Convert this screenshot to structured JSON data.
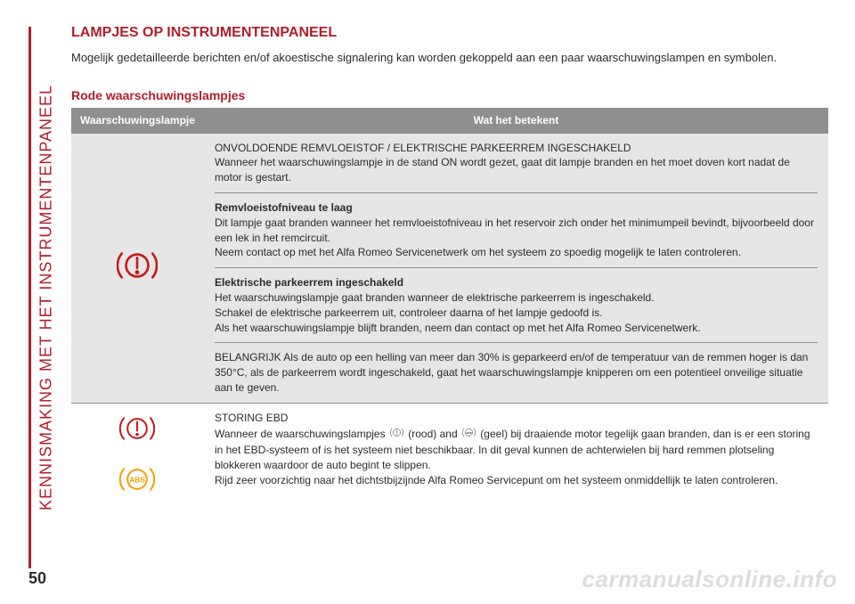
{
  "colors": {
    "brand_red": "#b01e2e",
    "text_black": "#2b2b2b",
    "header_grey": "#8f8f8f",
    "cell_alt_grey": "#e6e6e6",
    "divider_grey": "#8f8f8f",
    "white": "#ffffff",
    "icon_red": "#c31a1a",
    "icon_amber": "#f2a100",
    "watermark_grey": "#d9d9d9"
  },
  "vertical_label": "KENNISMAKING MET HET INSTRUMENTENPANEEL",
  "section_title": "LAMPJES OP INSTRUMENTENPANEEL",
  "intro_text": "Mogelijk gedetailleerde berichten en/of akoestische signalering kan worden gekoppeld aan een paar waarschuwingslampen en symbolen.",
  "sub_title": "Rode waarschuwingslampjes",
  "table": {
    "header_icon": "Waarschuwingslampje",
    "header_meaning": "Wat het betekent",
    "row1": {
      "block1_title": "ONVOLDOENDE REMVLOEISTOF / ELEKTRISCHE PARKEERREM INGESCHAKELD",
      "block1_body": "Wanneer het waarschuwingslampje in de stand ON wordt gezet, gaat dit lampje branden en het moet doven kort nadat de motor is gestart.",
      "block2_title": "Remvloeistofniveau te laag",
      "block2_body_a": "Dit lampje gaat branden wanneer het remvloeistofniveau in het reservoir zich onder het minimumpeil bevindt, bijvoorbeeld door een lek in het remcircuit.",
      "block2_body_b": "Neem contact op met het Alfa Romeo Servicenetwerk om het systeem zo spoedig mogelijk te laten controleren.",
      "block3_title": "Elektrische parkeerrem ingeschakeld",
      "block3_body_a": "Het waarschuwingslampje gaat branden wanneer de elektrische parkeerrem is ingeschakeld.",
      "block3_body_b": "Schakel de elektrische parkeerrem uit, controleer daarna of het lampje gedoofd is.",
      "block3_body_c": "Als het waarschuwingslampje blijft branden, neem dan contact op met het Alfa Romeo Servicenetwerk.",
      "block4_body": "BELANGRIJK Als de auto op een helling van meer dan 30% is geparkeerd en/of de temperatuur van de remmen hoger is dan 350°C, als de parkeerrem wordt ingeschakeld, gaat het waarschuwingslampje knipperen om een potentieel onveilige situatie aan te geven."
    },
    "row2": {
      "title": "STORING EBD",
      "body_a_pre": "Wanneer de waarschuwingslampjes ",
      "body_a_mid1": " (rood) and ",
      "body_a_mid2": " (geel) bij draaiende motor tegelijk gaan branden, dan is er een storing in het EBD-systeem of is het systeem niet beschikbaar. In dit geval kunnen de achterwielen bij hard remmen plotseling blokkeren waardoor de auto begint te slippen.",
      "body_b": "Rijd zeer voorzichtig naar het dichtstbijzijnde Alfa Romeo Servicepunt om het systeem onmiddellijk te laten controleren."
    }
  },
  "page_number": "50",
  "watermark": "carmanualsonline.info"
}
